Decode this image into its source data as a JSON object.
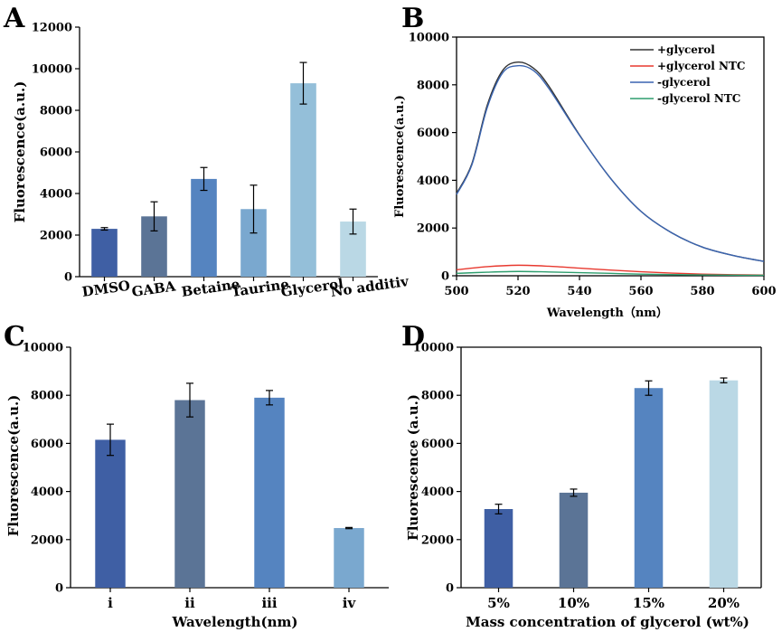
{
  "panels": {
    "A": "A",
    "B": "B",
    "C": "C",
    "D": "D"
  },
  "chart_data": [
    {
      "id": "A",
      "type": "bar",
      "title": "",
      "xlabel": "",
      "ylabel": "Fluorescence(a.u.)",
      "categories": [
        "DMSO",
        "GABA",
        "Betaine",
        "Taurine",
        "Glycerol",
        "No additive"
      ],
      "category_labels": [
        "DMSO",
        "GABA",
        "Betaine",
        "Taurine",
        "Glycerol",
        "No additiv"
      ],
      "values": [
        2300,
        2900,
        4700,
        3250,
        9300,
        2650
      ],
      "errors": [
        60,
        700,
        550,
        1150,
        1000,
        600
      ],
      "colors": [
        "#3f5fa4",
        "#5b7496",
        "#5584c0",
        "#7aa8cf",
        "#94bfd9",
        "#bad8e5"
      ],
      "ylim": [
        0,
        12000
      ],
      "yticks": [
        0,
        2000,
        4000,
        6000,
        8000,
        10000,
        12000
      ]
    },
    {
      "id": "B",
      "type": "line",
      "title": "",
      "xlabel": "Wavelength（nm）",
      "ylabel": "Fluorescence(a.u.)",
      "xlim": [
        500,
        600
      ],
      "ylim": [
        0,
        10000
      ],
      "xticks": [
        500,
        520,
        540,
        560,
        580,
        600
      ],
      "yticks": [
        0,
        2000,
        4000,
        6000,
        8000,
        10000
      ],
      "series": [
        {
          "name": "+glycerol",
          "color": "#333333",
          "x": [
            500,
            505,
            510,
            515,
            520,
            525,
            530,
            540,
            550,
            560,
            570,
            580,
            590,
            600
          ],
          "y": [
            3450,
            4700,
            7150,
            8600,
            8950,
            8700,
            7950,
            5900,
            4100,
            2700,
            1800,
            1200,
            850,
            600
          ]
        },
        {
          "name": "+glycerol NTC",
          "color": "#e8392f",
          "x": [
            500,
            510,
            520,
            530,
            540,
            550,
            560,
            570,
            580,
            590,
            600
          ],
          "y": [
            250,
            380,
            440,
            400,
            320,
            240,
            170,
            110,
            70,
            45,
            30
          ]
        },
        {
          "name": "-glycerol",
          "color": "#3a64b0",
          "x": [
            500,
            505,
            510,
            515,
            520,
            525,
            530,
            540,
            550,
            560,
            570,
            580,
            590,
            600
          ],
          "y": [
            3400,
            4650,
            7050,
            8500,
            8800,
            8600,
            7850,
            5880,
            4100,
            2700,
            1800,
            1200,
            850,
            600
          ]
        },
        {
          "name": "-glycerol NTC",
          "color": "#2e9e6e",
          "x": [
            500,
            510,
            520,
            530,
            540,
            550,
            560,
            570,
            580,
            590,
            600
          ],
          "y": [
            100,
            150,
            180,
            160,
            130,
            100,
            70,
            50,
            35,
            25,
            20
          ]
        }
      ],
      "legend": "top-right"
    },
    {
      "id": "C",
      "type": "bar",
      "title": "",
      "xlabel": "Wavelength(nm)",
      "ylabel": "Fluorescence(a.u.)",
      "categories": [
        "i",
        "ii",
        "iii",
        "iv"
      ],
      "values": [
        6150,
        7800,
        7900,
        2480
      ],
      "errors": [
        650,
        700,
        300,
        25
      ],
      "colors": [
        "#3f5fa4",
        "#5b7496",
        "#5584c0",
        "#7aa8cf"
      ],
      "ylim": [
        0,
        10000
      ],
      "yticks": [
        0,
        2000,
        4000,
        6000,
        8000,
        10000
      ]
    },
    {
      "id": "D",
      "type": "bar",
      "title": "",
      "xlabel": "Mass concentration of glycerol (wt%)",
      "ylabel": "Fluorescence (a.u.)",
      "categories": [
        "5%",
        "10%",
        "15%",
        "20%"
      ],
      "values": [
        3270,
        3950,
        8300,
        8620
      ],
      "errors": [
        200,
        150,
        300,
        100
      ],
      "colors": [
        "#3f5fa4",
        "#5b7496",
        "#5584c0",
        "#bad8e5"
      ],
      "ylim": [
        0,
        10000
      ],
      "yticks": [
        0,
        2000,
        4000,
        6000,
        8000,
        10000
      ]
    }
  ]
}
